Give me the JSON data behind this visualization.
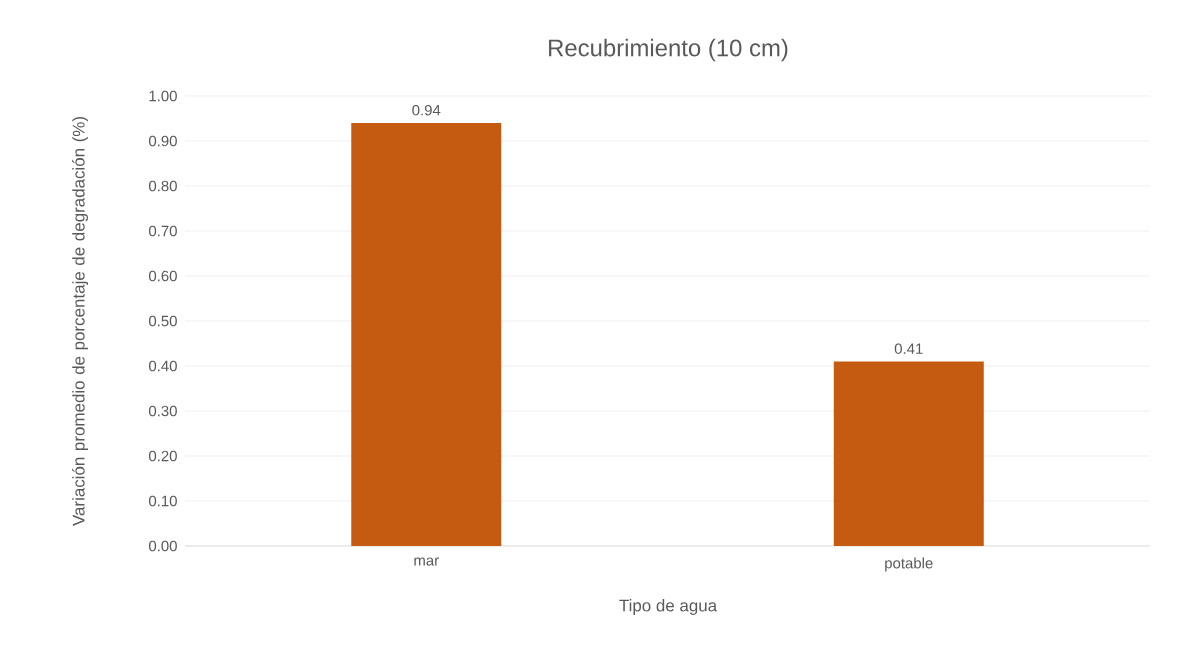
{
  "chart_data": {
    "type": "bar",
    "title": "Recubrimiento (10 cm)",
    "xlabel": "Tipo de agua",
    "ylabel": "Variación promedio de porcentaje de degradación (%)",
    "categories": [
      "mar",
      "potable"
    ],
    "values": [
      0.94,
      0.41
    ],
    "color": "#c55a11",
    "ylim": [
      0,
      1
    ],
    "yticks": [
      {
        "value": 0,
        "label": "0.00"
      },
      {
        "value": 0.1,
        "label": "0.10"
      },
      {
        "value": 0.2,
        "label": "0.20"
      },
      {
        "value": 0.3,
        "label": "0.30"
      },
      {
        "value": 0.4,
        "label": "0.40"
      },
      {
        "value": 0.5,
        "label": "0.50"
      },
      {
        "value": 0.6,
        "label": "0.60"
      },
      {
        "value": 0.7,
        "label": "0.70"
      },
      {
        "value": 0.8,
        "label": "0.80"
      },
      {
        "value": 0.9,
        "label": "0.90"
      },
      {
        "value": 1,
        "label": "1.00"
      }
    ],
    "grid": "y",
    "data_labels": true
  }
}
